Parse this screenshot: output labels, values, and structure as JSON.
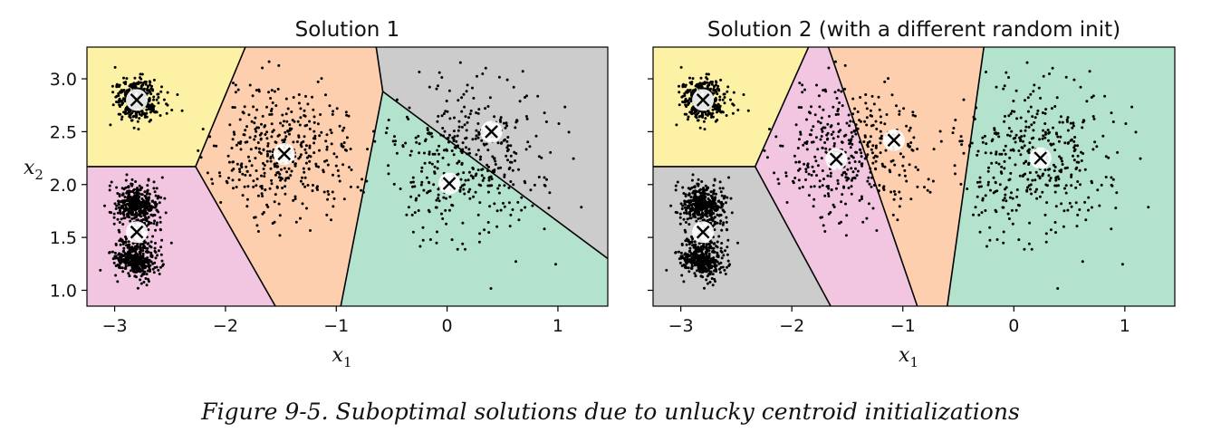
{
  "caption": "Figure 9-5. Suboptimal solutions due to unlucky centroid initializations",
  "colors": {
    "yellow": "#fdf1a6",
    "pink": "#f2c6e1",
    "orange": "#fdcfae",
    "gray": "#cccccc",
    "green": "#b3e2cd"
  },
  "chart_data": [
    {
      "type": "scatter",
      "title": "Solution 1",
      "xlabel": "x",
      "xlabel_sub": "1",
      "ylabel": "x",
      "ylabel_sub": "2",
      "xlim": [
        -3.25,
        1.45
      ],
      "ylim": [
        0.85,
        3.3
      ],
      "xticks": [
        -3,
        -2,
        -1,
        0,
        1
      ],
      "xtick_labels": [
        "−3",
        "−2",
        "−1",
        "0",
        "1"
      ],
      "yticks": [
        1.0,
        1.5,
        2.0,
        2.5,
        3.0
      ],
      "ytick_labels": [
        "1.0",
        "1.5",
        "2.0",
        "2.5",
        "3.0"
      ],
      "regions": [
        {
          "color": "yellow",
          "polygon": [
            [
              -3.25,
              3.3
            ],
            [
              -1.82,
              3.3
            ],
            [
              -2.27,
              2.17
            ],
            [
              -3.25,
              2.17
            ]
          ]
        },
        {
          "color": "pink",
          "polygon": [
            [
              -3.25,
              2.17
            ],
            [
              -2.27,
              2.17
            ],
            [
              -1.55,
              0.85
            ],
            [
              -3.25,
              0.85
            ]
          ]
        },
        {
          "color": "orange",
          "polygon": [
            [
              -1.82,
              3.3
            ],
            [
              -0.64,
              3.3
            ],
            [
              -0.58,
              2.88
            ],
            [
              -0.96,
              0.85
            ],
            [
              -1.55,
              0.85
            ],
            [
              -2.27,
              2.17
            ]
          ]
        },
        {
          "color": "gray",
          "polygon": [
            [
              -0.64,
              3.3
            ],
            [
              1.45,
              3.3
            ],
            [
              1.45,
              1.3
            ],
            [
              -0.58,
              2.88
            ]
          ]
        },
        {
          "color": "green",
          "polygon": [
            [
              -0.58,
              2.88
            ],
            [
              1.45,
              1.3
            ],
            [
              1.45,
              0.85
            ],
            [
              -0.96,
              0.85
            ]
          ]
        }
      ],
      "boundaries": [
        [
          [
            -1.82,
            3.3
          ],
          [
            -2.27,
            2.17
          ],
          [
            -3.25,
            2.17
          ]
        ],
        [
          [
            -2.27,
            2.17
          ],
          [
            -1.55,
            0.85
          ]
        ],
        [
          [
            -0.64,
            3.3
          ],
          [
            -0.58,
            2.88
          ],
          [
            -0.96,
            0.85
          ]
        ],
        [
          [
            -0.58,
            2.88
          ],
          [
            1.45,
            1.3
          ]
        ]
      ],
      "centroids": [
        [
          -2.8,
          2.8
        ],
        [
          -2.8,
          1.55
        ],
        [
          -1.47,
          2.29
        ],
        [
          0.02,
          2.01
        ],
        [
          0.4,
          2.5
        ]
      ]
    },
    {
      "type": "scatter",
      "title": "Solution 2 (with a different random init)",
      "xlabel": "x",
      "xlabel_sub": "1",
      "ylabel": "",
      "ylabel_sub": "",
      "xlim": [
        -3.25,
        1.45
      ],
      "ylim": [
        0.85,
        3.3
      ],
      "xticks": [
        -3,
        -2,
        -1,
        0,
        1
      ],
      "xtick_labels": [
        "−3",
        "−2",
        "−1",
        "0",
        "1"
      ],
      "yticks": [
        1.0,
        1.5,
        2.0,
        2.5,
        3.0
      ],
      "ytick_labels": [
        "",
        "",
        "",
        "",
        ""
      ],
      "regions": [
        {
          "color": "yellow",
          "polygon": [
            [
              -3.25,
              3.3
            ],
            [
              -1.85,
              3.3
            ],
            [
              -2.33,
              2.17
            ],
            [
              -3.25,
              2.17
            ]
          ]
        },
        {
          "color": "gray",
          "polygon": [
            [
              -3.25,
              2.17
            ],
            [
              -2.33,
              2.17
            ],
            [
              -1.65,
              0.85
            ],
            [
              -3.25,
              0.85
            ]
          ]
        },
        {
          "color": "pink",
          "polygon": [
            [
              -1.85,
              3.3
            ],
            [
              -1.67,
              3.3
            ],
            [
              -0.87,
              0.85
            ],
            [
              -1.65,
              0.85
            ],
            [
              -2.33,
              2.17
            ]
          ]
        },
        {
          "color": "orange",
          "polygon": [
            [
              -1.67,
              3.3
            ],
            [
              -0.27,
              3.3
            ],
            [
              -0.6,
              0.85
            ],
            [
              -0.87,
              0.85
            ]
          ]
        },
        {
          "color": "green",
          "polygon": [
            [
              -0.27,
              3.3
            ],
            [
              1.45,
              3.3
            ],
            [
              1.45,
              0.85
            ],
            [
              -0.6,
              0.85
            ]
          ]
        }
      ],
      "boundaries": [
        [
          [
            -1.85,
            3.3
          ],
          [
            -2.33,
            2.17
          ],
          [
            -3.25,
            2.17
          ]
        ],
        [
          [
            -2.33,
            2.17
          ],
          [
            -1.65,
            0.85
          ]
        ],
        [
          [
            -1.67,
            3.3
          ],
          [
            -0.87,
            0.85
          ]
        ],
        [
          [
            -0.27,
            3.3
          ],
          [
            -0.6,
            0.85
          ]
        ]
      ],
      "centroids": [
        [
          -2.8,
          2.8
        ],
        [
          -2.8,
          1.55
        ],
        [
          -1.6,
          2.24
        ],
        [
          -1.08,
          2.42
        ],
        [
          0.24,
          2.25
        ]
      ]
    }
  ],
  "clusters": [
    {
      "center": [
        -2.8,
        2.8
      ],
      "sd": 0.1,
      "n": 400
    },
    {
      "center": [
        -2.8,
        1.8
      ],
      "sd": 0.1,
      "n": 400
    },
    {
      "center": [
        -2.8,
        1.3
      ],
      "sd": 0.1,
      "n": 400
    },
    {
      "center": [
        -1.47,
        2.3
      ],
      "sd": 0.3,
      "n": 400
    },
    {
      "center": [
        0.2,
        2.25
      ],
      "sd": 0.37,
      "n": 400
    }
  ]
}
